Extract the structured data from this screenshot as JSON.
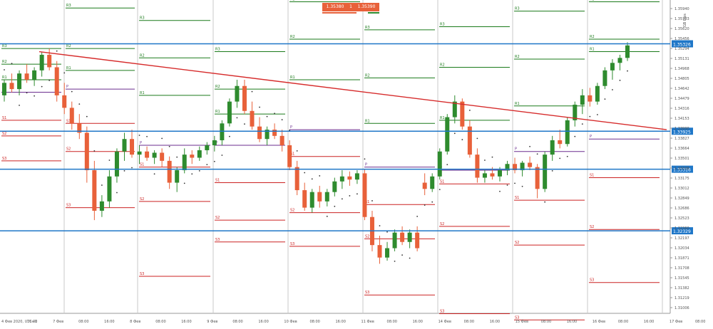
{
  "chart_data": {
    "type": "candlestick",
    "symbol": "GBP/USD",
    "timeframe": "H1",
    "header_date": "4 Фев 2020, UTC+1",
    "side_label": "GB Pips",
    "bid_label": "1.35380",
    "ask_label": "1.35390",
    "current_price": "1.35326",
    "ylim": [
      1.31006,
      1.36028
    ],
    "y_ticks": [
      "1.35940",
      "1.35783",
      "1.35620",
      "1.35456",
      "1.35294",
      "1.35131",
      "1.34968",
      "1.34805",
      "1.34642",
      "1.34479",
      "1.34316",
      "1.34153",
      "1.33990",
      "1.33827",
      "1.33664",
      "1.33501",
      "1.33338",
      "1.33175",
      "1.33012",
      "1.32849",
      "1.32686",
      "1.32523",
      "1.32360",
      "1.32197",
      "1.32034",
      "1.31871",
      "1.31708",
      "1.31545",
      "1.31382",
      "1.31219",
      "1.31006"
    ],
    "x_ticks": [
      "4 Фев 2020, UTC+1",
      "16:00",
      "7 Фев",
      "08:00",
      "16:00",
      "8 Фев",
      "08:00",
      "16:00",
      "9 Фев",
      "08:00",
      "16:00",
      "10 Фев",
      "08:00",
      "16:00",
      "11 Фев",
      "08:00",
      "16:00",
      "14 Фев",
      "08:00",
      "16:00",
      "15 Фев",
      "08:00",
      "16:00",
      "16 Фев",
      "08:00",
      "16:00",
      "17 Фев",
      "08:00"
    ],
    "horizontal_levels": [
      {
        "label": "1.35326",
        "price": 1.35326
      },
      {
        "label": "1.33925",
        "price": 1.33925
      },
      {
        "label": "1.33316",
        "price": 1.33316
      },
      {
        "label": "1.32329",
        "price": 1.32329
      }
    ],
    "pivot_labels": [
      "R1",
      "R2",
      "R3",
      "P",
      "S1",
      "S2",
      "S3"
    ],
    "colors": {
      "up": "#2e8b2e",
      "down": "#e8613a",
      "resistance": "#1a7a1a",
      "support": "#cc2222",
      "pivot": "#6b2e8f",
      "levels": "#1f77c8",
      "trend": "#d62b2b",
      "sar": "#333333"
    },
    "candles": [
      [
        1.345,
        1.3475,
        1.344,
        1.347
      ],
      [
        1.347,
        1.3485,
        1.3455,
        1.346
      ],
      [
        1.346,
        1.349,
        1.345,
        1.3485
      ],
      [
        1.3485,
        1.35,
        1.347,
        1.3475
      ],
      [
        1.3475,
        1.3495,
        1.3465,
        1.349
      ],
      [
        1.349,
        1.352,
        1.348,
        1.3515
      ],
      [
        1.3515,
        1.3525,
        1.349,
        1.3495
      ],
      [
        1.3495,
        1.3505,
        1.344,
        1.345
      ],
      [
        1.345,
        1.347,
        1.342,
        1.343
      ],
      [
        1.343,
        1.344,
        1.3395,
        1.3405
      ],
      [
        1.3405,
        1.342,
        1.338,
        1.339
      ],
      [
        1.339,
        1.34,
        1.331,
        1.333
      ],
      [
        1.333,
        1.3345,
        1.325,
        1.3265
      ],
      [
        1.3265,
        1.329,
        1.3255,
        1.328
      ],
      [
        1.328,
        1.333,
        1.327,
        1.332
      ],
      [
        1.332,
        1.3365,
        1.331,
        1.336
      ],
      [
        1.336,
        1.339,
        1.3345,
        1.338
      ],
      [
        1.338,
        1.3395,
        1.335,
        1.3355
      ],
      [
        1.3355,
        1.337,
        1.334,
        1.336
      ],
      [
        1.336,
        1.3368,
        1.3345,
        1.335
      ],
      [
        1.335,
        1.3362,
        1.334,
        1.3358
      ],
      [
        1.3358,
        1.3365,
        1.3335,
        1.3345
      ],
      [
        1.3345,
        1.3352,
        1.33,
        1.331
      ],
      [
        1.331,
        1.3335,
        1.3295,
        1.333
      ],
      [
        1.333,
        1.3365,
        1.3325,
        1.3355
      ],
      [
        1.3355,
        1.3362,
        1.334,
        1.335
      ],
      [
        1.335,
        1.3368,
        1.3345,
        1.3362
      ],
      [
        1.3362,
        1.3375,
        1.3355,
        1.337
      ],
      [
        1.337,
        1.3385,
        1.336,
        1.3378
      ],
      [
        1.3378,
        1.341,
        1.337,
        1.3405
      ],
      [
        1.3405,
        1.3445,
        1.34,
        1.344
      ],
      [
        1.344,
        1.3475,
        1.343,
        1.3465
      ],
      [
        1.3465,
        1.3475,
        1.342,
        1.3425
      ],
      [
        1.3425,
        1.344,
        1.3395,
        1.34
      ],
      [
        1.34,
        1.3415,
        1.3375,
        1.338
      ],
      [
        1.338,
        1.34,
        1.337,
        1.3395
      ],
      [
        1.3395,
        1.3405,
        1.338,
        1.3385
      ],
      [
        1.3385,
        1.3395,
        1.336,
        1.337
      ],
      [
        1.337,
        1.3378,
        1.333,
        1.3335
      ],
      [
        1.3335,
        1.3345,
        1.329,
        1.3298
      ],
      [
        1.3298,
        1.331,
        1.3265,
        1.327
      ],
      [
        1.327,
        1.33,
        1.3262,
        1.3295
      ],
      [
        1.3295,
        1.3305,
        1.327,
        1.328
      ],
      [
        1.328,
        1.33,
        1.3272,
        1.3295
      ],
      [
        1.3295,
        1.3318,
        1.3288,
        1.3312
      ],
      [
        1.3312,
        1.333,
        1.33,
        1.332
      ],
      [
        1.332,
        1.3328,
        1.3305,
        1.3315
      ],
      [
        1.3315,
        1.333,
        1.3308,
        1.3325
      ],
      [
        1.3325,
        1.3332,
        1.325,
        1.3255
      ],
      [
        1.3255,
        1.3265,
        1.32,
        1.321
      ],
      [
        1.321,
        1.3225,
        1.318,
        1.319
      ],
      [
        1.319,
        1.3215,
        1.3185,
        1.3205
      ],
      [
        1.3205,
        1.3235,
        1.32,
        1.323
      ],
      [
        1.323,
        1.324,
        1.321,
        1.3215
      ],
      [
        1.3215,
        1.3235,
        1.3205,
        1.323
      ],
      [
        1.323,
        1.324,
        1.32,
        1.3205
      ],
      [
        1.331,
        1.3325,
        1.329,
        1.33
      ],
      [
        1.33,
        1.3325,
        1.3295,
        1.332
      ],
      [
        1.332,
        1.3365,
        1.3315,
        1.336
      ],
      [
        1.336,
        1.342,
        1.3355,
        1.3415
      ],
      [
        1.3415,
        1.345,
        1.3405,
        1.344
      ],
      [
        1.344,
        1.3445,
        1.3395,
        1.34
      ],
      [
        1.34,
        1.341,
        1.335,
        1.3355
      ],
      [
        1.3355,
        1.3365,
        1.331,
        1.3318
      ],
      [
        1.3318,
        1.333,
        1.331,
        1.3325
      ],
      [
        1.3325,
        1.3335,
        1.3315,
        1.332
      ],
      [
        1.332,
        1.3335,
        1.3312,
        1.333
      ],
      [
        1.333,
        1.3345,
        1.3322,
        1.334
      ],
      [
        1.334,
        1.335,
        1.3325,
        1.333
      ],
      [
        1.333,
        1.3345,
        1.332,
        1.3342
      ],
      [
        1.3342,
        1.3352,
        1.333,
        1.3335
      ],
      [
        1.3335,
        1.334,
        1.3285,
        1.33
      ],
      [
        1.33,
        1.336,
        1.3295,
        1.3355
      ],
      [
        1.3355,
        1.3385,
        1.3345,
        1.3378
      ],
      [
        1.3378,
        1.3395,
        1.3365,
        1.3372
      ],
      [
        1.3372,
        1.3415,
        1.3368,
        1.341
      ],
      [
        1.341,
        1.344,
        1.34,
        1.3435
      ],
      [
        1.3435,
        1.346,
        1.342,
        1.345
      ],
      [
        1.345,
        1.3462,
        1.3432,
        1.344
      ],
      [
        1.344,
        1.347,
        1.3435,
        1.3465
      ],
      [
        1.3465,
        1.3495,
        1.346,
        1.349
      ],
      [
        1.349,
        1.3508,
        1.3475,
        1.3502
      ],
      [
        1.3502,
        1.3515,
        1.349,
        1.351
      ],
      [
        1.351,
        1.3535,
        1.3505,
        1.353
      ]
    ]
  },
  "trade": {
    "sell_label": "1.35380",
    "spread_label": "1",
    "buy_label": "1.35390",
    "sell_color": "#e8613a",
    "buy_color": "#e8613a"
  }
}
